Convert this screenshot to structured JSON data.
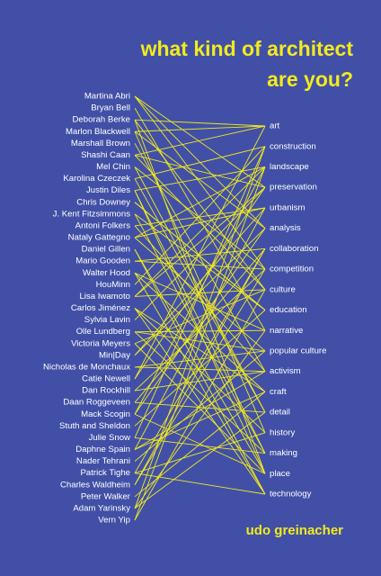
{
  "title": {
    "line1": "what kind of architect",
    "line2": "are you?"
  },
  "names": [
    "Martina Abri",
    "Bryan Bell",
    "Deborah Berke",
    "Marlon Blackwell",
    "Marshall Brown",
    "Shashi Caan",
    "Mel Chin",
    "Karolina Czeczek",
    "Justin Diles",
    "Chris Downey",
    "J. Kent Fitzsimmons",
    "Antoni Folkers",
    "Nataly Gattegno",
    "Daniel Gillen",
    "Mario Gooden",
    "Walter Hood",
    "HouMinn",
    "Lisa Iwamoto",
    "Carlos Jiménez",
    "Sylvia Lavin",
    "Olle Lundberg",
    "Victoria Meyers",
    "Min|Day",
    "Nicholas de Monchaux",
    "Catie Newell",
    "Dan Rockhill",
    "Daan Roggeveen",
    "Mack Scogin",
    "Stuth and Sheldon",
    "Julie Snow",
    "Daphne Spain",
    "Nader Tehrani",
    "Patrick Tighe",
    "Charles Waldheim",
    "Peter Walker",
    "Adam Yarinsky",
    "Vern Yip"
  ],
  "topics": [
    "art",
    "construction",
    "landscape",
    "preservation",
    "urbanism",
    "analysis",
    "collaboration",
    "competition",
    "culture",
    "education",
    "narrative",
    "popular culture",
    "activism",
    "craft",
    "detail",
    "history",
    "making",
    "place",
    "technology"
  ],
  "author": "udo greinacher"
}
